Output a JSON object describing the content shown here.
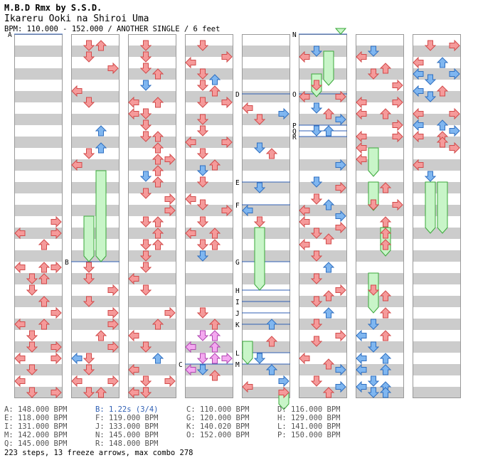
{
  "header": {
    "title": "M.B.D Rmx by S.S.D.",
    "song": "Ikareru Ooki na Shiroi Uma",
    "meta": "BPM: 110.000 - 152.000 / ANOTHER SINGLE / 6 feet"
  },
  "chart_data": {
    "type": "step-chart",
    "columns": 8,
    "lanes": 4,
    "colors": {
      "stripe": "#cccccc",
      "note_red": "#f59a9a",
      "note_red_edge": "#d24a4a",
      "note_blue": "#7fb6f0",
      "note_blue_edge": "#2f6fc0",
      "note_pink": "#f4a8f0",
      "note_pink_edge": "#b048b0",
      "freeze": "#c8f5c8",
      "freeze_edge": "#3aa83a",
      "marker_line": "#2f5fb4"
    },
    "markers": [
      {
        "label": "A",
        "col": 0,
        "beat": 0
      },
      {
        "label": "B",
        "col": 1,
        "beat": 20
      },
      {
        "label": "C",
        "col": 3,
        "beat": 29
      },
      {
        "label": "D",
        "col": 4,
        "beat": 5.25
      },
      {
        "label": "E",
        "col": 4,
        "beat": 13
      },
      {
        "label": "F",
        "col": 4,
        "beat": 15
      },
      {
        "label": "G",
        "col": 4,
        "beat": 20
      },
      {
        "label": "H",
        "col": 4,
        "beat": 22.5
      },
      {
        "label": "I",
        "col": 4,
        "beat": 23.5
      },
      {
        "label": "J",
        "col": 4,
        "beat": 24.5
      },
      {
        "label": "K",
        "col": 4,
        "beat": 25.5
      },
      {
        "label": "L",
        "col": 4,
        "beat": 28
      },
      {
        "label": "M",
        "col": 4,
        "beat": 29
      },
      {
        "label": "N",
        "col": 5,
        "beat": 0
      },
      {
        "label": "O",
        "col": 5,
        "beat": 5.25
      },
      {
        "label": "P",
        "col": 5,
        "beat": 8
      },
      {
        "label": "Q",
        "col": 5,
        "beat": 8.5
      },
      {
        "label": "R",
        "col": 5,
        "beat": 9
      }
    ],
    "notes": [
      [
        0,
        0,
        17,
        "r"
      ],
      [
        0,
        3,
        16,
        "r"
      ],
      [
        0,
        2,
        18,
        "r"
      ],
      [
        0,
        3,
        17,
        "r"
      ],
      [
        0,
        0,
        20,
        "r"
      ],
      [
        0,
        2,
        20,
        "r"
      ],
      [
        0,
        3,
        20,
        "r"
      ],
      [
        0,
        1,
        21,
        "r"
      ],
      [
        0,
        2,
        21,
        "r"
      ],
      [
        0,
        1,
        22,
        "r"
      ],
      [
        0,
        2,
        23,
        "r"
      ],
      [
        0,
        3,
        24,
        "r"
      ],
      [
        0,
        0,
        25,
        "r"
      ],
      [
        0,
        2,
        25,
        "r"
      ],
      [
        0,
        1,
        26,
        "r"
      ],
      [
        0,
        1,
        27,
        "r"
      ],
      [
        0,
        3,
        27,
        "r"
      ],
      [
        0,
        0,
        28,
        "r"
      ],
      [
        0,
        3,
        28,
        "r"
      ],
      [
        0,
        1,
        29,
        "r"
      ],
      [
        0,
        0,
        30,
        "r"
      ],
      [
        0,
        1,
        31,
        "r"
      ],
      [
        0,
        3,
        31,
        "r"
      ],
      [
        1,
        1,
        0.5,
        "r"
      ],
      [
        1,
        2,
        0.5,
        "r"
      ],
      [
        1,
        1,
        1.5,
        "r"
      ],
      [
        1,
        3,
        2.5,
        "r"
      ],
      [
        1,
        0,
        4.5,
        "r"
      ],
      [
        1,
        1,
        5.5,
        "r"
      ],
      [
        1,
        2,
        8,
        "b"
      ],
      [
        1,
        1,
        10,
        "r"
      ],
      [
        1,
        2,
        9.5,
        "b"
      ],
      [
        1,
        0,
        11,
        "r"
      ],
      [
        1,
        1,
        20,
        "r"
      ],
      [
        1,
        1,
        21,
        "r"
      ],
      [
        1,
        3,
        22,
        "r"
      ],
      [
        1,
        1,
        23,
        "r"
      ],
      [
        1,
        3,
        24,
        "r"
      ],
      [
        1,
        3,
        25,
        "r"
      ],
      [
        1,
        2,
        26,
        "r"
      ],
      [
        1,
        3,
        27,
        "r"
      ],
      [
        1,
        0,
        28,
        "b"
      ],
      [
        1,
        1,
        28,
        "r"
      ],
      [
        1,
        0,
        30,
        "r"
      ],
      [
        1,
        3,
        30,
        "r"
      ],
      [
        1,
        1,
        29,
        "r"
      ],
      [
        1,
        1,
        31,
        "r"
      ],
      [
        1,
        2,
        31,
        "r"
      ],
      [
        2,
        1,
        0.5,
        "r"
      ],
      [
        2,
        1,
        1.5,
        "r"
      ],
      [
        2,
        1,
        2.5,
        "r"
      ],
      [
        2,
        2,
        3,
        "r"
      ],
      [
        2,
        1,
        4,
        "b"
      ],
      [
        2,
        0,
        5.5,
        "r"
      ],
      [
        2,
        2,
        5.5,
        "r"
      ],
      [
        2,
        0,
        6.5,
        "r"
      ],
      [
        2,
        1,
        6.5,
        "r"
      ],
      [
        2,
        1,
        7.5,
        "r"
      ],
      [
        2,
        1,
        8.5,
        "r"
      ],
      [
        2,
        2,
        8.5,
        "r"
      ],
      [
        2,
        2,
        9.5,
        "r"
      ],
      [
        2,
        2,
        10.5,
        "r"
      ],
      [
        2,
        3,
        10.5,
        "r"
      ],
      [
        2,
        2,
        11.5,
        "r"
      ],
      [
        2,
        1,
        12,
        "b"
      ],
      [
        2,
        2,
        12.5,
        "r"
      ],
      [
        2,
        1,
        13.5,
        "r"
      ],
      [
        2,
        3,
        14,
        "r"
      ],
      [
        2,
        3,
        15,
        "r"
      ],
      [
        2,
        1,
        16,
        "r"
      ],
      [
        2,
        2,
        16,
        "r"
      ],
      [
        2,
        2,
        17,
        "r"
      ],
      [
        2,
        1,
        18,
        "r"
      ],
      [
        2,
        2,
        18,
        "r"
      ],
      [
        2,
        1,
        19,
        "r"
      ],
      [
        2,
        1,
        20,
        "r"
      ],
      [
        2,
        0,
        21,
        "r"
      ],
      [
        2,
        1,
        22,
        "r"
      ],
      [
        2,
        3,
        24,
        "r"
      ],
      [
        2,
        2,
        25,
        "r"
      ],
      [
        2,
        0,
        26,
        "r"
      ],
      [
        2,
        1,
        27,
        "r"
      ],
      [
        2,
        2,
        28,
        "b"
      ],
      [
        2,
        0,
        29,
        "r"
      ],
      [
        2,
        1,
        30,
        "r"
      ],
      [
        2,
        3,
        30,
        "r"
      ],
      [
        2,
        0,
        31,
        "r"
      ],
      [
        2,
        1,
        31,
        "r"
      ],
      [
        3,
        1,
        0.5,
        "r"
      ],
      [
        3,
        3,
        1.5,
        "r"
      ],
      [
        3,
        0,
        2,
        "r"
      ],
      [
        3,
        1,
        3,
        "r"
      ],
      [
        3,
        1,
        4,
        "r"
      ],
      [
        3,
        2,
        3.5,
        "b"
      ],
      [
        3,
        2,
        4.5,
        "r"
      ],
      [
        3,
        1,
        5.5,
        "r"
      ],
      [
        3,
        3,
        5.5,
        "r"
      ],
      [
        3,
        1,
        7,
        "r"
      ],
      [
        3,
        1,
        8,
        "r"
      ],
      [
        3,
        0,
        9,
        "r"
      ],
      [
        3,
        3,
        9,
        "r"
      ],
      [
        3,
        1,
        10,
        "r"
      ],
      [
        3,
        2,
        11,
        "r"
      ],
      [
        3,
        1,
        11.5,
        "b"
      ],
      [
        3,
        1,
        12.5,
        "r"
      ],
      [
        3,
        0,
        14,
        "r"
      ],
      [
        3,
        1,
        14.5,
        "r"
      ],
      [
        3,
        3,
        15,
        "r"
      ],
      [
        3,
        1,
        16,
        "r"
      ],
      [
        3,
        0,
        17,
        "r"
      ],
      [
        3,
        2,
        17,
        "r"
      ],
      [
        3,
        1,
        18,
        "r"
      ],
      [
        3,
        2,
        18,
        "r"
      ],
      [
        3,
        1,
        19,
        "b"
      ],
      [
        3,
        1,
        24,
        "r"
      ],
      [
        3,
        2,
        25,
        "r"
      ],
      [
        3,
        1,
        26,
        "p"
      ],
      [
        3,
        2,
        26,
        "p"
      ],
      [
        3,
        0,
        27,
        "p"
      ],
      [
        3,
        2,
        27,
        "p"
      ],
      [
        3,
        1,
        28,
        "p"
      ],
      [
        3,
        2,
        28,
        "p"
      ],
      [
        3,
        3,
        28,
        "p"
      ],
      [
        3,
        0,
        29,
        "p"
      ],
      [
        3,
        1,
        29,
        "b"
      ],
      [
        3,
        2,
        29.5,
        "r"
      ],
      [
        4,
        0,
        6,
        "r"
      ],
      [
        4,
        3,
        6.5,
        "b"
      ],
      [
        4,
        1,
        7,
        "r"
      ],
      [
        4,
        1,
        9.5,
        "b"
      ],
      [
        4,
        2,
        10,
        "r"
      ],
      [
        4,
        1,
        13,
        "b"
      ],
      [
        4,
        0,
        15,
        "b"
      ],
      [
        4,
        1,
        16,
        "r"
      ],
      [
        4,
        2,
        26.5,
        "r"
      ],
      [
        4,
        2,
        25,
        "b"
      ],
      [
        4,
        1,
        28,
        "b"
      ],
      [
        4,
        2,
        29,
        "b"
      ],
      [
        4,
        3,
        30,
        "b"
      ],
      [
        4,
        0,
        30.5,
        "r"
      ],
      [
        4,
        3,
        31,
        "r"
      ],
      [
        5,
        0,
        1.5,
        "r"
      ],
      [
        5,
        1,
        1,
        "b"
      ],
      [
        5,
        1,
        4,
        "r"
      ],
      [
        5,
        0,
        5,
        "r"
      ],
      [
        5,
        3,
        5,
        "r"
      ],
      [
        5,
        1,
        6,
        "b"
      ],
      [
        5,
        2,
        6.5,
        "r"
      ],
      [
        5,
        3,
        7,
        "b"
      ],
      [
        5,
        1,
        8,
        "b"
      ],
      [
        5,
        2,
        8,
        "b"
      ],
      [
        5,
        3,
        11,
        "b"
      ],
      [
        5,
        1,
        12.5,
        "b"
      ],
      [
        5,
        3,
        13,
        "r"
      ],
      [
        5,
        1,
        14,
        "r"
      ],
      [
        5,
        2,
        14.5,
        "b"
      ],
      [
        5,
        0,
        15,
        "r"
      ],
      [
        5,
        3,
        15.5,
        "b"
      ],
      [
        5,
        0,
        16,
        "r"
      ],
      [
        5,
        3,
        16.5,
        "r"
      ],
      [
        5,
        1,
        17,
        "r"
      ],
      [
        5,
        2,
        17.5,
        "r"
      ],
      [
        5,
        0,
        18,
        "r"
      ],
      [
        5,
        1,
        19,
        "r"
      ],
      [
        5,
        2,
        20,
        "b"
      ],
      [
        5,
        1,
        21,
        "r"
      ],
      [
        5,
        3,
        22,
        "r"
      ],
      [
        5,
        2,
        22.5,
        "r"
      ],
      [
        5,
        1,
        23,
        "r"
      ],
      [
        5,
        2,
        24,
        "b"
      ],
      [
        5,
        1,
        25,
        "r"
      ],
      [
        5,
        3,
        26,
        "r"
      ],
      [
        5,
        1,
        26.5,
        "r"
      ],
      [
        5,
        0,
        28,
        "r"
      ],
      [
        5,
        2,
        28.5,
        "r"
      ],
      [
        5,
        3,
        29,
        "b"
      ],
      [
        5,
        1,
        30,
        "r"
      ],
      [
        5,
        3,
        30.5,
        "b"
      ],
      [
        5,
        2,
        31,
        "r"
      ],
      [
        6,
        1,
        1,
        "b"
      ],
      [
        6,
        0,
        1.5,
        "r"
      ],
      [
        6,
        2,
        2.5,
        "r"
      ],
      [
        6,
        1,
        3,
        "r"
      ],
      [
        6,
        3,
        4,
        "r"
      ],
      [
        6,
        0,
        5.5,
        "r"
      ],
      [
        6,
        3,
        5.5,
        "r"
      ],
      [
        6,
        0,
        6.5,
        "r"
      ],
      [
        6,
        2,
        6.5,
        "r"
      ],
      [
        6,
        3,
        7.5,
        "r"
      ],
      [
        6,
        0,
        8.5,
        "r"
      ],
      [
        6,
        3,
        8.5,
        "r"
      ],
      [
        6,
        0,
        9.5,
        "r"
      ],
      [
        6,
        0,
        10.5,
        "r"
      ],
      [
        6,
        1,
        14.5,
        "r"
      ],
      [
        6,
        2,
        13,
        "r"
      ],
      [
        6,
        3,
        14.5,
        "r"
      ],
      [
        6,
        2,
        16,
        "r"
      ],
      [
        6,
        2,
        17,
        "r"
      ],
      [
        6,
        2,
        18,
        "r"
      ],
      [
        6,
        1,
        22,
        "r"
      ],
      [
        6,
        2,
        22.5,
        "r"
      ],
      [
        6,
        2,
        24,
        "r"
      ],
      [
        6,
        1,
        25,
        "b"
      ],
      [
        6,
        0,
        26,
        "b"
      ],
      [
        6,
        2,
        26,
        "r"
      ],
      [
        6,
        1,
        27,
        "b"
      ],
      [
        6,
        0,
        28,
        "b"
      ],
      [
        6,
        2,
        28,
        "b"
      ],
      [
        6,
        0,
        29,
        "b"
      ],
      [
        6,
        2,
        29,
        "b"
      ],
      [
        6,
        1,
        30,
        "b"
      ],
      [
        6,
        0,
        30.5,
        "b"
      ],
      [
        6,
        2,
        30.5,
        "b"
      ],
      [
        6,
        1,
        31,
        "b"
      ],
      [
        6,
        2,
        31,
        "b"
      ],
      [
        7,
        1,
        0.5,
        "r"
      ],
      [
        7,
        3,
        0.5,
        "r"
      ],
      [
        7,
        0,
        2,
        "r"
      ],
      [
        7,
        2,
        2,
        "b"
      ],
      [
        7,
        0,
        3,
        "b"
      ],
      [
        7,
        1,
        3.5,
        "b"
      ],
      [
        7,
        3,
        3,
        "b"
      ],
      [
        7,
        0,
        4.5,
        "b"
      ],
      [
        7,
        2,
        4.5,
        "r"
      ],
      [
        7,
        1,
        5,
        "b"
      ],
      [
        7,
        0,
        6.5,
        "r"
      ],
      [
        7,
        3,
        6.5,
        "r"
      ],
      [
        7,
        0,
        7.5,
        "b"
      ],
      [
        7,
        2,
        7.5,
        "b"
      ],
      [
        7,
        0,
        8.5,
        "r"
      ],
      [
        7,
        2,
        8.5,
        "r"
      ],
      [
        7,
        3,
        8,
        "b"
      ],
      [
        7,
        3,
        9.5,
        "r"
      ],
      [
        7,
        1,
        12,
        "b"
      ],
      [
        7,
        2,
        9,
        "r"
      ],
      [
        7,
        0,
        11,
        "r"
      ]
    ],
    "freezes": [
      [
        1,
        2,
        12,
        20
      ],
      [
        1,
        1,
        16,
        20
      ],
      [
        4,
        1,
        17,
        22.5
      ],
      [
        4,
        0,
        27,
        29
      ],
      [
        4,
        3,
        31.5,
        33
      ],
      [
        5,
        3,
        -0.5,
        0
      ],
      [
        5,
        2,
        1.5,
        4.5
      ],
      [
        5,
        1,
        3.5,
        5.5
      ],
      [
        6,
        1,
        10,
        12.5
      ],
      [
        6,
        1,
        13,
        15.5
      ],
      [
        6,
        2,
        17,
        19.5
      ],
      [
        6,
        1,
        21,
        24.5
      ],
      [
        7,
        1,
        13,
        17.5
      ],
      [
        7,
        2,
        13,
        17.5
      ]
    ],
    "bpm_changes": [
      {
        "text": "A: 148.000 BPM",
        "col": 0,
        "row": 0,
        "blue": false
      },
      {
        "text": "B: 1.22s (3/4)",
        "col": 1,
        "row": 0,
        "blue": true
      },
      {
        "text": "C: 110.000 BPM",
        "col": 2,
        "row": 0,
        "blue": false
      },
      {
        "text": "D: 116.000 BPM",
        "col": 3,
        "row": 0,
        "blue": false
      },
      {
        "text": "E: 118.000 BPM",
        "col": 0,
        "row": 1,
        "blue": false
      },
      {
        "text": "F: 119.000 BPM",
        "col": 1,
        "row": 1,
        "blue": false
      },
      {
        "text": "G: 120.000 BPM",
        "col": 2,
        "row": 1,
        "blue": false
      },
      {
        "text": "H: 129.000 BPM",
        "col": 3,
        "row": 1,
        "blue": false
      },
      {
        "text": "I: 131.000 BPM",
        "col": 0,
        "row": 2,
        "blue": false
      },
      {
        "text": "J: 133.000 BPM",
        "col": 1,
        "row": 2,
        "blue": false
      },
      {
        "text": "K: 140.020 BPM",
        "col": 2,
        "row": 2,
        "blue": false
      },
      {
        "text": "L: 141.000 BPM",
        "col": 3,
        "row": 2,
        "blue": false
      },
      {
        "text": "M: 142.000 BPM",
        "col": 0,
        "row": 3,
        "blue": false
      },
      {
        "text": "N: 145.000 BPM",
        "col": 1,
        "row": 3,
        "blue": false
      },
      {
        "text": "O: 152.000 BPM",
        "col": 2,
        "row": 3,
        "blue": false
      },
      {
        "text": "P: 150.000 BPM",
        "col": 3,
        "row": 3,
        "blue": false
      },
      {
        "text": "Q: 145.000 BPM",
        "col": 0,
        "row": 4,
        "blue": false
      },
      {
        "text": "R: 148.000 BPM",
        "col": 1,
        "row": 4,
        "blue": false
      }
    ]
  },
  "footer": {
    "summary": "223 steps, 13 freeze arrows, max combo 278"
  }
}
